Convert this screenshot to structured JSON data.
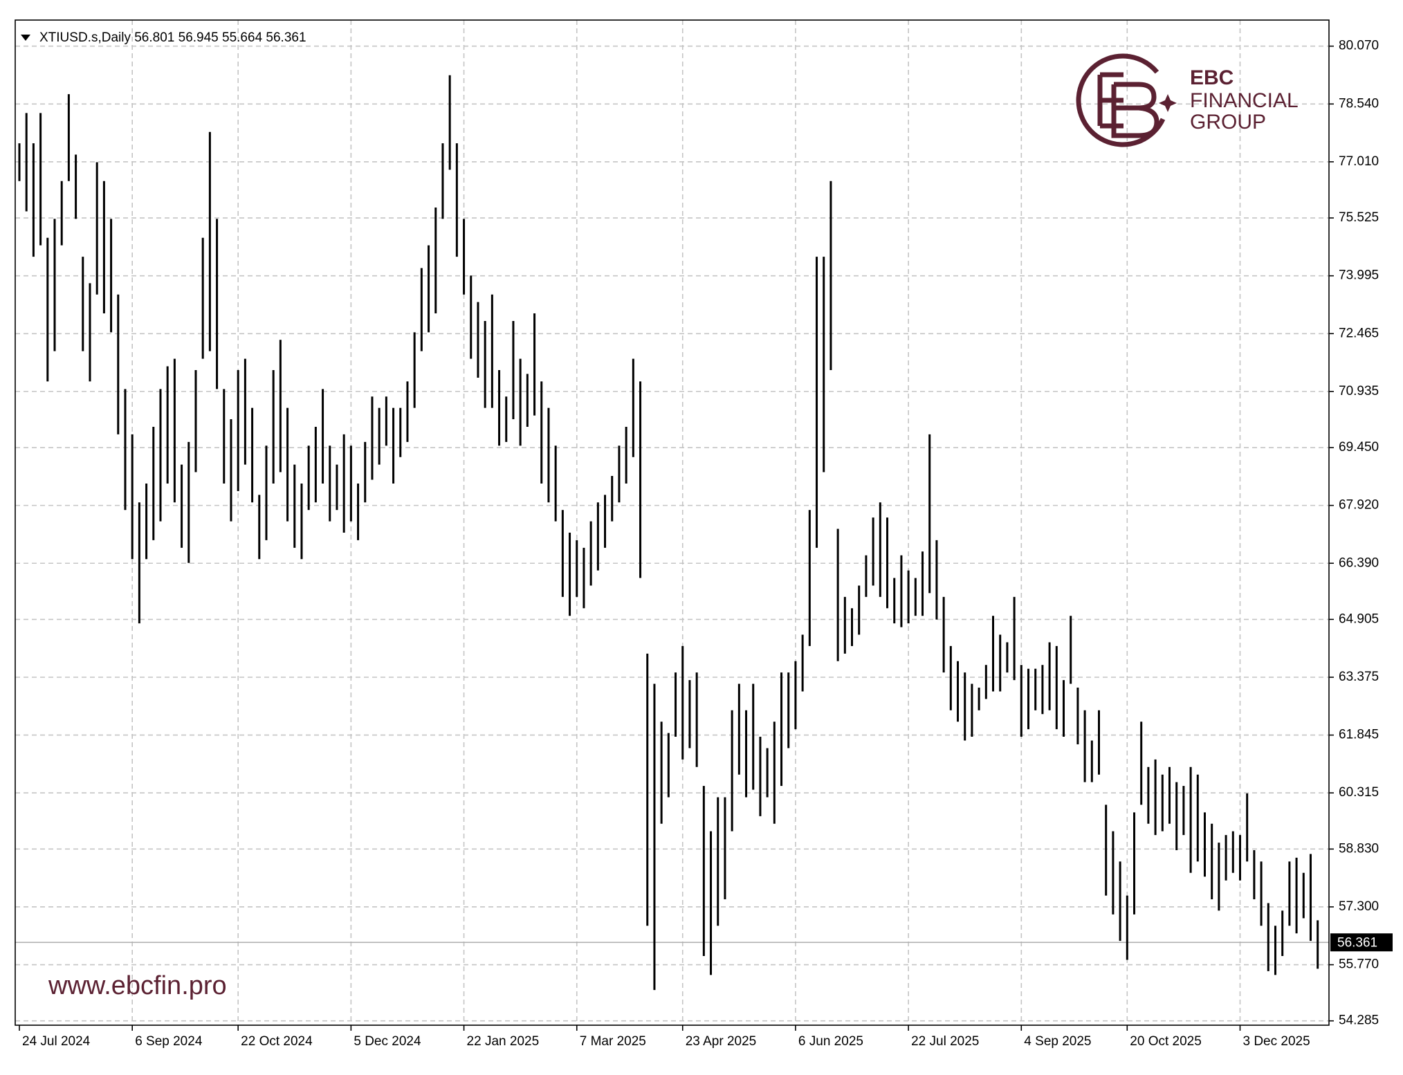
{
  "chart_data": {
    "type": "ohlc",
    "title": "XTIUSD.s,Daily  56.801 56.945 55.664 56.361",
    "brand": {
      "name": "EBC",
      "line1": "FINANCIAL",
      "line2": "GROUP",
      "website": "www.ebcfin.pro"
    },
    "color": "#000000",
    "grid": true,
    "last_price": 56.361,
    "ylim": [
      54.17,
      80.76
    ],
    "yticks": [
      {
        "value": 80.07,
        "label": "80.070"
      },
      {
        "value": 78.54,
        "label": "78.540"
      },
      {
        "value": 77.01,
        "label": "77.010"
      },
      75.525,
      73.995,
      72.465,
      70.935,
      {
        "value": 69.45,
        "label": "69.450"
      },
      {
        "value": 67.92,
        "label": "67.920"
      },
      {
        "value": 66.39,
        "label": "66.390"
      },
      64.905,
      63.375,
      61.845,
      60.315,
      {
        "value": 58.83,
        "label": "58.830"
      },
      {
        "value": 57.3,
        "label": "57.300"
      },
      {
        "value": 55.77,
        "label": "55.770"
      },
      54.285
    ],
    "xlim": [
      0,
      185.6
    ],
    "xticks": [
      {
        "value": 0,
        "label": "24 Jul 2024"
      },
      {
        "value": 16,
        "label": "6 Sep 2024"
      },
      {
        "value": 31,
        "label": "22 Oct 2024"
      },
      {
        "value": 47,
        "label": "5 Dec 2024"
      },
      {
        "value": 63,
        "label": "22 Jan 2025"
      },
      {
        "value": 79,
        "label": "7 Mar 2025"
      },
      {
        "value": 94,
        "label": "23 Apr 2025"
      },
      {
        "value": 110,
        "label": "6 Jun 2025"
      },
      {
        "value": 126,
        "label": "22 Jul 2025"
      },
      {
        "value": 142,
        "label": "4 Sep 2025"
      },
      {
        "value": 157,
        "label": "20 Oct 2025"
      },
      {
        "value": 173,
        "label": "3 Dec 2025"
      }
    ],
    "high": [
      77.5,
      78.3,
      77.5,
      78.3,
      75,
      75.5,
      76.5,
      78.8,
      77.2,
      74.5,
      73.8,
      77,
      76.5,
      75.5,
      73.5,
      71,
      69.8,
      68,
      68.5,
      70,
      71,
      71.6,
      71.8,
      69,
      69.6,
      71.5,
      75,
      77.8,
      75.5,
      71,
      70.2,
      71.5,
      71.8,
      70.5,
      68.2,
      69.5,
      71.5,
      72.3,
      70.5,
      69,
      68.5,
      69.5,
      70,
      71,
      69.5,
      69,
      69.8,
      69.5,
      68.5,
      69.6,
      70.8,
      70.5,
      70.8,
      70.5,
      70.5,
      71.2,
      72.5,
      74.2,
      74.8,
      75.8,
      77.5,
      79.3,
      77.5,
      75.5,
      74,
      73.3,
      72.8,
      73.5,
      71.5,
      70.8,
      72.8,
      71.8,
      71.4,
      73,
      71.2,
      70.5,
      69.5,
      67.8,
      67.2,
      67,
      66.8,
      67.5,
      68,
      68.2,
      68.7,
      69.5,
      70,
      71.8,
      71.2,
      64,
      63.2,
      62.2,
      61.9,
      63.5,
      64.2,
      63.3,
      63.5,
      60.5,
      59.3,
      60.2,
      60.2,
      62.5,
      63.2,
      62.5,
      63.2,
      61.8,
      61.5,
      62.2,
      63.5,
      63.5,
      63.8,
      64.5,
      67.8,
      74.5,
      74.5,
      76.5,
      67.3,
      65.5,
      65.2,
      65.8,
      66.6,
      67.6,
      68,
      67.6,
      66,
      66.6,
      66.2,
      66,
      66.7,
      69.8,
      67,
      65.5,
      64.2,
      63.8,
      63.5,
      63.2,
      63.1,
      63.7,
      65,
      64.5,
      64.3,
      65.5,
      63.7,
      63.6,
      63.6,
      63.7,
      64.3,
      64.2,
      63.3,
      65,
      63.1,
      62.5,
      61.7,
      62.5,
      60,
      59.3,
      58.5,
      57.6,
      59.8,
      62.2,
      61,
      61.2,
      60.8,
      61,
      60.6,
      60.5,
      61,
      60.8,
      59.8,
      59.5,
      59,
      59.2,
      59.3,
      59.2,
      60.3,
      58.8,
      58.5,
      57.4,
      56.8,
      57.2,
      58.5,
      58.6,
      58.2,
      58.7,
      56.945
    ],
    "low": [
      76.5,
      75.7,
      74.5,
      74.8,
      71.2,
      72,
      74.8,
      76.5,
      75.5,
      72,
      71.2,
      73.5,
      73,
      72.5,
      69.8,
      67.8,
      66.5,
      64.8,
      66.5,
      67,
      67.5,
      68.5,
      68,
      66.8,
      66.4,
      68.8,
      71.8,
      72,
      71,
      68.5,
      67.5,
      68.3,
      69,
      68,
      66.5,
      67,
      68.5,
      68.8,
      67.5,
      66.8,
      66.5,
      67.8,
      68,
      68.5,
      67.5,
      67.8,
      67.2,
      67.5,
      67,
      68,
      68.6,
      69,
      69.5,
      68.5,
      69.2,
      69.6,
      70.5,
      72,
      72.5,
      73,
      75.5,
      76.8,
      74.5,
      73.5,
      71.8,
      71.3,
      70.5,
      70.5,
      69.5,
      69.6,
      70.2,
      69.5,
      70,
      70.3,
      68.5,
      68,
      67.5,
      65.5,
      65,
      65.5,
      65.2,
      65.8,
      66.2,
      66.8,
      67.5,
      68,
      68.5,
      69.2,
      66,
      56.8,
      55.1,
      59.5,
      60.2,
      61.8,
      61.2,
      61.5,
      61,
      56,
      55.5,
      56.8,
      57.5,
      59.3,
      60.8,
      60.2,
      60.4,
      59.7,
      60.2,
      59.5,
      60.5,
      61.5,
      62,
      63,
      64.2,
      66.8,
      68.8,
      71.5,
      63.8,
      64,
      64.2,
      64.5,
      65.5,
      65.8,
      65.5,
      65.2,
      64.8,
      64.7,
      64.8,
      65,
      65,
      65.6,
      64.9,
      63.5,
      62.5,
      62.2,
      61.7,
      61.8,
      62.5,
      62.8,
      63,
      63,
      63.5,
      63.3,
      61.8,
      62,
      62.5,
      62.4,
      62.5,
      62,
      61.8,
      63.2,
      61.6,
      60.6,
      60.6,
      60.8,
      57.6,
      57.1,
      56.4,
      55.9,
      57.1,
      60,
      59.5,
      59.2,
      59.3,
      59.5,
      58.8,
      59.2,
      58.2,
      58.5,
      58.1,
      57.5,
      57.2,
      58,
      58.2,
      58,
      58.5,
      57.5,
      56.8,
      55.6,
      55.5,
      56,
      56.8,
      56.6,
      57,
      56.4,
      55.664
    ]
  }
}
